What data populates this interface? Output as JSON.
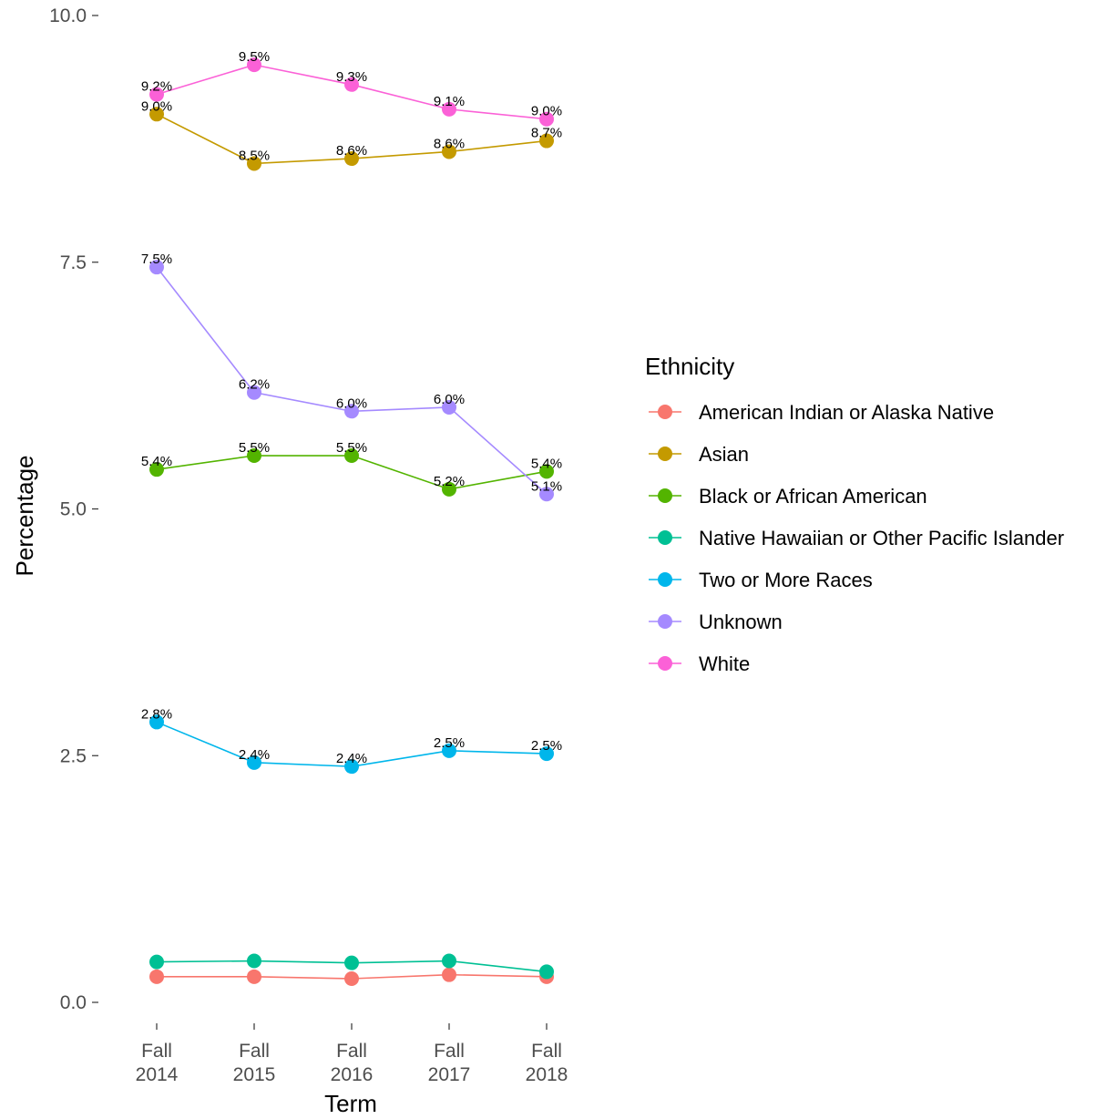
{
  "chart_data": {
    "type": "line",
    "title": "",
    "xlabel": "Term",
    "ylabel": "Percentage",
    "categories": [
      [
        "Fall",
        "2014"
      ],
      [
        "Fall",
        "2015"
      ],
      [
        "Fall",
        "2016"
      ],
      [
        "Fall",
        "2017"
      ],
      [
        "Fall",
        "2018"
      ]
    ],
    "y_ticks": [
      "0.0",
      "2.5",
      "5.0",
      "7.5",
      "10.0"
    ],
    "ylim": [
      0,
      10
    ],
    "grid": false,
    "legend": {
      "title": "Ethnicity",
      "position": "right"
    },
    "series": [
      {
        "name": "American Indian or Alaska Native",
        "color": "#F8766D",
        "values": [
          0.26,
          0.26,
          0.24,
          0.28,
          0.26
        ],
        "labels": [
          "",
          "",
          "",
          "",
          ""
        ]
      },
      {
        "name": "Asian",
        "color": "#C49A00",
        "values": [
          9.0,
          8.5,
          8.55,
          8.62,
          8.73
        ],
        "labels": [
          "9.0%",
          "8.5%",
          "8.6%",
          "8.6%",
          "8.7%"
        ]
      },
      {
        "name": "Black or African American",
        "color": "#53B400",
        "values": [
          5.4,
          5.54,
          5.54,
          5.2,
          5.38
        ],
        "labels": [
          "5.4%",
          "5.5%",
          "5.5%",
          "5.2%",
          "5.4%"
        ]
      },
      {
        "name": "Native Hawaiian or Other Pacific Islander",
        "color": "#00C094",
        "values": [
          0.41,
          0.42,
          0.4,
          0.42,
          0.31
        ],
        "labels": [
          "",
          "",
          "",
          "",
          ""
        ]
      },
      {
        "name": "Two or More Races",
        "color": "#00B6EB",
        "values": [
          2.84,
          2.43,
          2.39,
          2.55,
          2.52
        ],
        "labels": [
          "2.8%",
          "2.4%",
          "2.4%",
          "2.5%",
          "2.5%"
        ]
      },
      {
        "name": "Unknown",
        "color": "#A58AFF",
        "values": [
          7.45,
          6.18,
          5.99,
          6.03,
          5.15
        ],
        "labels": [
          "7.5%",
          "6.2%",
          "6.0%",
          "6.0%",
          "5.1%"
        ]
      },
      {
        "name": "White",
        "color": "#FB61D7",
        "values": [
          9.2,
          9.5,
          9.3,
          9.05,
          8.95
        ],
        "labels": [
          "9.2%",
          "9.5%",
          "9.3%",
          "9.1%",
          "9.0%"
        ]
      }
    ]
  }
}
